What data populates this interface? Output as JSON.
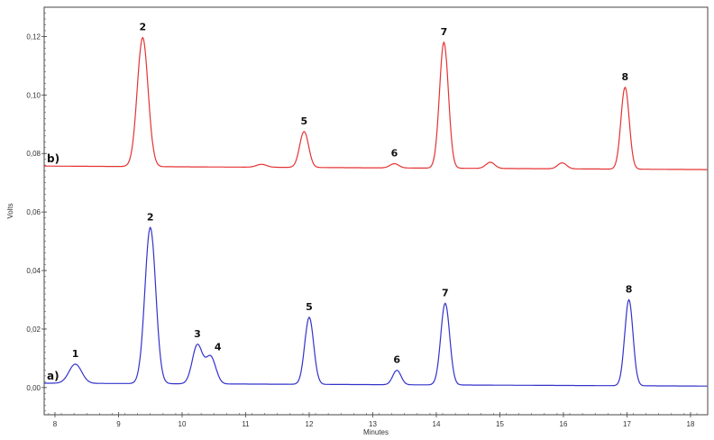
{
  "chart_data": {
    "type": "line",
    "title": "",
    "xlabel": "Minutes",
    "ylabel": "Volts",
    "xlim": [
      7.83,
      18.27
    ],
    "ylim": [
      -0.0093,
      0.13
    ],
    "x_ticks": [
      8,
      9,
      10,
      11,
      12,
      13,
      14,
      15,
      16,
      17,
      18
    ],
    "x_tick_labels": [
      "8",
      "9",
      "10",
      "11",
      "12",
      "13",
      "14",
      "15",
      "16",
      "17",
      "18"
    ],
    "y_ticks": [
      0,
      0.02,
      0.04,
      0.06,
      0.08,
      0.1,
      0.12
    ],
    "y_tick_labels": [
      "0,00",
      "0,02",
      "0,04",
      "0,06",
      "0,08",
      "0,10",
      "0,12"
    ],
    "grid": false,
    "series": [
      {
        "name": "a)",
        "color": "#3333cc",
        "baseline_start": 0.0015,
        "baseline_end": 0.0005,
        "peaks": [
          {
            "label": "1",
            "rt": 8.32,
            "apex": 0.008,
            "sigma": 0.1
          },
          {
            "label": "2",
            "rt": 9.5,
            "apex": 0.0547,
            "sigma": 0.085
          },
          {
            "label": "3",
            "rt": 10.24,
            "apex": 0.0145,
            "sigma": 0.08
          },
          {
            "label": "4",
            "rt": 10.45,
            "apex": 0.0105,
            "sigma": 0.08
          },
          {
            "label": "5",
            "rt": 12.0,
            "apex": 0.024,
            "sigma": 0.07
          },
          {
            "label": "6",
            "rt": 13.38,
            "apex": 0.0059,
            "sigma": 0.065
          },
          {
            "label": "7",
            "rt": 14.14,
            "apex": 0.0288,
            "sigma": 0.07
          },
          {
            "label": "8",
            "rt": 17.03,
            "apex": 0.03,
            "sigma": 0.065
          }
        ]
      },
      {
        "name": "b)",
        "color": "#e53333",
        "baseline_start": 0.0757,
        "baseline_end": 0.0745,
        "peaks": [
          {
            "label": "2",
            "rt": 9.38,
            "apex": 0.1196,
            "sigma": 0.085
          },
          {
            "label": "",
            "rt": 11.25,
            "apex": 0.0763,
            "sigma": 0.08
          },
          {
            "label": "5",
            "rt": 11.92,
            "apex": 0.0875,
            "sigma": 0.07
          },
          {
            "label": "6",
            "rt": 13.34,
            "apex": 0.0765,
            "sigma": 0.07
          },
          {
            "label": "7",
            "rt": 14.12,
            "apex": 0.118,
            "sigma": 0.07
          },
          {
            "label": "",
            "rt": 14.85,
            "apex": 0.077,
            "sigma": 0.07
          },
          {
            "label": "",
            "rt": 15.98,
            "apex": 0.0768,
            "sigma": 0.07
          },
          {
            "label": "8",
            "rt": 16.97,
            "apex": 0.1026,
            "sigma": 0.065
          }
        ]
      }
    ]
  }
}
